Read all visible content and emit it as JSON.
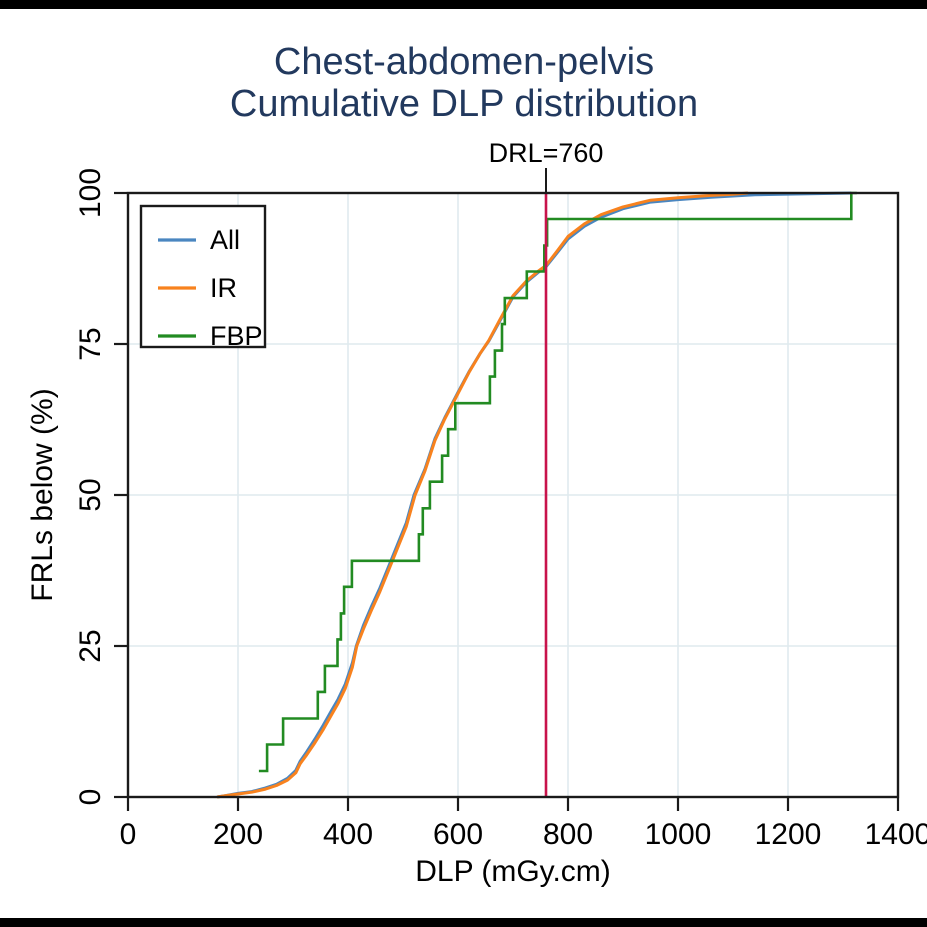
{
  "chart_data": {
    "type": "line",
    "title_line1": "Chest-abdomen-pelvis",
    "title_line2": "Cumulative DLP distribution",
    "xlabel": "DLP (mGy.cm)",
    "ylabel": "FRLs below (%)",
    "xlim": [
      0,
      1400
    ],
    "ylim": [
      0,
      100
    ],
    "x_ticks": [
      0,
      200,
      400,
      600,
      800,
      1000,
      1200,
      1400
    ],
    "y_ticks": [
      0,
      25,
      50,
      75,
      100
    ],
    "grid": true,
    "grid_color": "#dfeaee",
    "legend_position": "top-left",
    "reference_line": {
      "label": "DRL=760",
      "x": 760,
      "color": "#C8134B"
    },
    "series": [
      {
        "name": "All",
        "color": "#4A86C0",
        "style": "line",
        "points": [
          [
            162,
            0
          ],
          [
            175,
            0.2
          ],
          [
            200,
            0.6
          ],
          [
            225,
            0.9
          ],
          [
            250,
            1.5
          ],
          [
            270,
            2.1
          ],
          [
            290,
            3.1
          ],
          [
            305,
            4.4
          ],
          [
            313,
            5.9
          ],
          [
            325,
            7.5
          ],
          [
            340,
            9.6
          ],
          [
            355,
            11.9
          ],
          [
            370,
            14.3
          ],
          [
            382,
            16.2
          ],
          [
            395,
            18.7
          ],
          [
            408,
            22.2
          ],
          [
            415,
            25
          ],
          [
            428,
            28.4
          ],
          [
            442,
            31.4
          ],
          [
            458,
            34.6
          ],
          [
            474,
            38.2
          ],
          [
            490,
            41.8
          ],
          [
            506,
            45.4
          ],
          [
            520,
            50
          ],
          [
            540,
            54.3
          ],
          [
            558,
            59.3
          ],
          [
            576,
            62.8
          ],
          [
            600,
            67
          ],
          [
            620,
            70.4
          ],
          [
            640,
            73.4
          ],
          [
            656,
            75.5
          ],
          [
            676,
            78.8
          ],
          [
            700,
            82.8
          ],
          [
            724,
            85.2
          ],
          [
            745,
            86.8
          ],
          [
            760,
            87.8
          ],
          [
            782,
            90.3
          ],
          [
            800,
            92.4
          ],
          [
            830,
            94.5
          ],
          [
            860,
            96
          ],
          [
            900,
            97.4
          ],
          [
            950,
            98.5
          ],
          [
            1000,
            98.9
          ],
          [
            1060,
            99.3
          ],
          [
            1100,
            99.5
          ],
          [
            1140,
            99.7
          ],
          [
            1315,
            100
          ]
        ]
      },
      {
        "name": "IR",
        "color": "#F8821E",
        "style": "line",
        "points": [
          [
            162,
            0
          ],
          [
            175,
            0.2
          ],
          [
            200,
            0.5
          ],
          [
            225,
            0.8
          ],
          [
            250,
            1.3
          ],
          [
            270,
            1.9
          ],
          [
            290,
            2.8
          ],
          [
            305,
            4
          ],
          [
            313,
            5.5
          ],
          [
            325,
            7
          ],
          [
            340,
            9
          ],
          [
            355,
            11.2
          ],
          [
            370,
            13.6
          ],
          [
            382,
            15.5
          ],
          [
            395,
            18
          ],
          [
            408,
            21.5
          ],
          [
            416,
            25
          ],
          [
            428,
            27.8
          ],
          [
            442,
            30.8
          ],
          [
            458,
            34
          ],
          [
            474,
            37.6
          ],
          [
            490,
            41.2
          ],
          [
            506,
            44.8
          ],
          [
            522,
            50
          ],
          [
            540,
            54
          ],
          [
            558,
            59
          ],
          [
            576,
            62.6
          ],
          [
            600,
            66.8
          ],
          [
            620,
            70.3
          ],
          [
            640,
            73.4
          ],
          [
            656,
            75.6
          ],
          [
            676,
            79
          ],
          [
            700,
            83
          ],
          [
            724,
            85.4
          ],
          [
            745,
            87
          ],
          [
            760,
            88
          ],
          [
            782,
            90.6
          ],
          [
            800,
            92.8
          ],
          [
            830,
            94.9
          ],
          [
            860,
            96.4
          ],
          [
            900,
            97.7
          ],
          [
            950,
            98.8
          ],
          [
            1000,
            99.2
          ],
          [
            1060,
            99.6
          ],
          [
            1100,
            99.8
          ],
          [
            1127,
            100
          ]
        ]
      },
      {
        "name": "FBP",
        "color": "#228B22",
        "style": "step",
        "points": [
          [
            238,
            4.3
          ],
          [
            253,
            8.7
          ],
          [
            282,
            13
          ],
          [
            345,
            17.4
          ],
          [
            358,
            21.7
          ],
          [
            381,
            26.1
          ],
          [
            387,
            30.4
          ],
          [
            393,
            34.8
          ],
          [
            407,
            39.1
          ],
          [
            529,
            43.5
          ],
          [
            536,
            47.8
          ],
          [
            549,
            52.2
          ],
          [
            571,
            56.5
          ],
          [
            582,
            60.9
          ],
          [
            595,
            65.2
          ],
          [
            658,
            69.6
          ],
          [
            667,
            73.9
          ],
          [
            680,
            78.3
          ],
          [
            685,
            82.6
          ],
          [
            725,
            87
          ],
          [
            757,
            91.3
          ],
          [
            762,
            95.7
          ],
          [
            1315,
            100
          ],
          [
            1325,
            100
          ]
        ]
      }
    ]
  },
  "colors": {
    "title": "#22395E",
    "axis": "#1a1a1a",
    "grid": "#dfeaee",
    "reference": "#C8134B",
    "background": "#ffffff"
  }
}
